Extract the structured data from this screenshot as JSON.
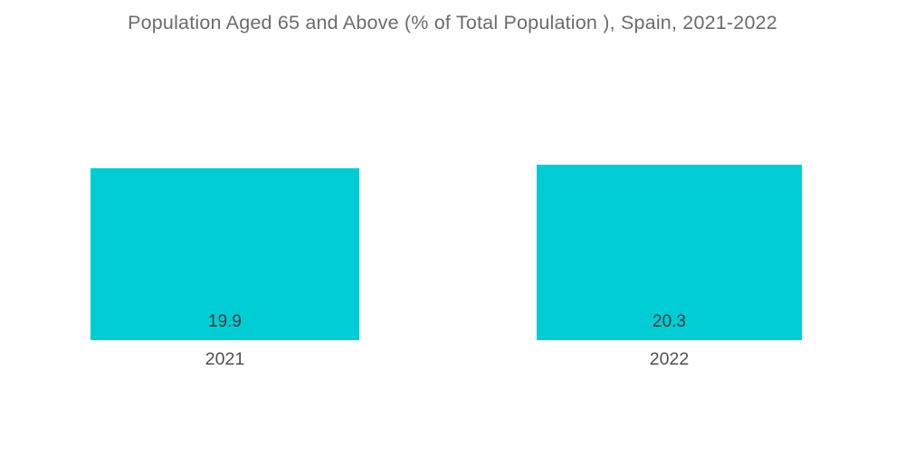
{
  "title": "Population Aged 65 and Above (% of Total Population ), Spain, 2021-2022",
  "colors": {
    "bar": "#00CCD3",
    "title_text": "#6b6b6b",
    "value_label_text": "#3f3f3f",
    "category_label_text": "#4f4f4f",
    "background": "#ffffff"
  },
  "chart_data": {
    "type": "bar",
    "title": "Population Aged 65 and Above (% of Total Population ), Spain, 2021-2022",
    "categories": [
      "2021",
      "2022"
    ],
    "values": [
      19.9,
      20.3
    ],
    "value_labels": [
      "19.9",
      "20.3"
    ],
    "series": [
      {
        "name": "Population Aged 65 and Above (% of Total Population)",
        "values": [
          19.9,
          20.3
        ]
      }
    ],
    "xlabel": "",
    "ylabel": "",
    "ylim": [
      0,
      22
    ],
    "grid": false,
    "legend": false,
    "bar_color": "#00CCD3",
    "value_labels_position": "above-bar",
    "category_labels_position": "below-bar"
  }
}
